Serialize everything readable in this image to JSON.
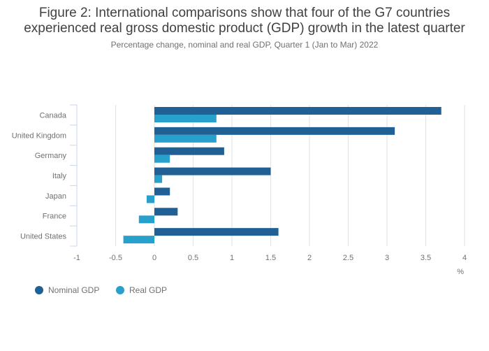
{
  "title_line1": "Figure 2: International comparisons show that four of the G7 countries",
  "title_line2": "experienced real gross domestic product (GDP) growth in the latest quarter",
  "subtitle": "Percentage change, nominal and real GDP, Quarter 1 (Jan to Mar) 2022",
  "chart_data": {
    "type": "bar",
    "orientation": "horizontal",
    "categories": [
      "Canada",
      "United Kingdom",
      "Germany",
      "Italy",
      "Japan",
      "France",
      "United States"
    ],
    "series": [
      {
        "name": "Nominal GDP",
        "color": "#206095",
        "values": [
          3.7,
          3.1,
          0.9,
          1.5,
          0.2,
          0.3,
          1.6
        ]
      },
      {
        "name": "Real GDP",
        "color": "#27a0cc",
        "values": [
          0.8,
          0.8,
          0.2,
          0.1,
          -0.1,
          -0.2,
          -0.4
        ]
      }
    ],
    "xlim": [
      -1,
      4
    ],
    "xticks": [
      "-1",
      "-0.5",
      "0",
      "0.5",
      "1",
      "1.5",
      "2",
      "2.5",
      "3",
      "3.5",
      "4"
    ],
    "xlabel": "%",
    "grid": true,
    "legend": "bottom-left"
  }
}
